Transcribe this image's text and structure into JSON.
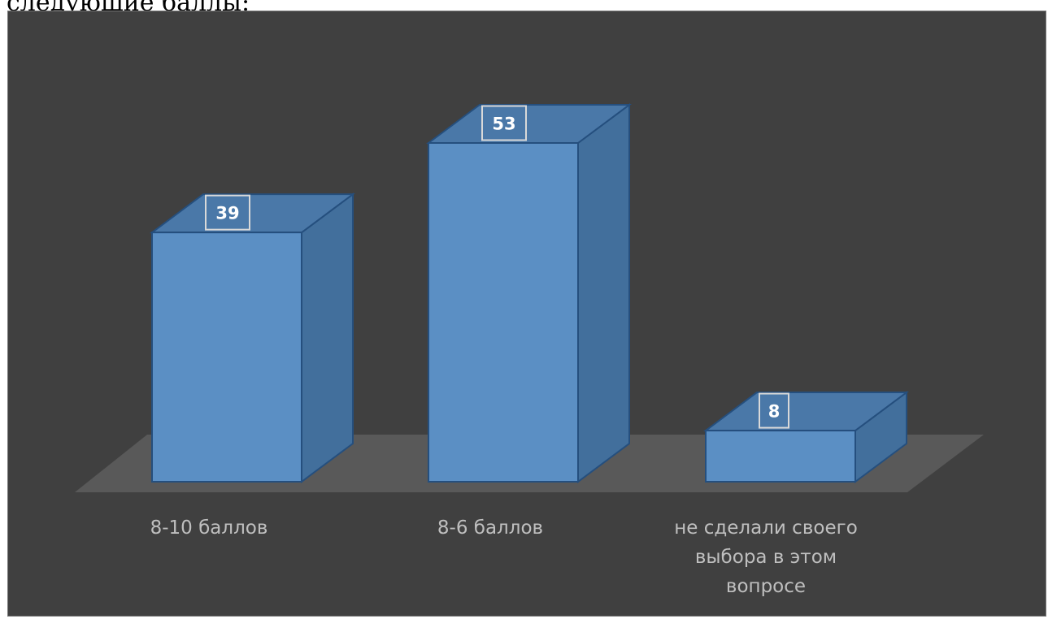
{
  "page": {
    "top_text": "следующие баллы:"
  },
  "colors": {
    "background": "#404040",
    "floor": "#595959",
    "bar_front": "#5b8fc4",
    "bar_top": "#4a78a8",
    "bar_side": "#426f9c",
    "bar_edge": "#254f7e",
    "label_text": "#bfbfbf",
    "data_label_text": "#ffffff"
  },
  "chart_data": {
    "type": "bar",
    "style": "3d-column",
    "categories": [
      "8-10 баллов",
      "8-6 баллов",
      "не сделали своего выбора в этом вопросе"
    ],
    "category_lines": [
      [
        "8-10 баллов"
      ],
      [
        "8-6 баллов"
      ],
      [
        "не сделали своего",
        "выбора в этом",
        "вопросе"
      ]
    ],
    "values": [
      39,
      53,
      8
    ],
    "data_labels": [
      "39",
      "53",
      "8"
    ],
    "title": "",
    "xlabel": "",
    "ylabel": "",
    "ylim": [
      0,
      53
    ],
    "grid": false,
    "legend": false
  }
}
